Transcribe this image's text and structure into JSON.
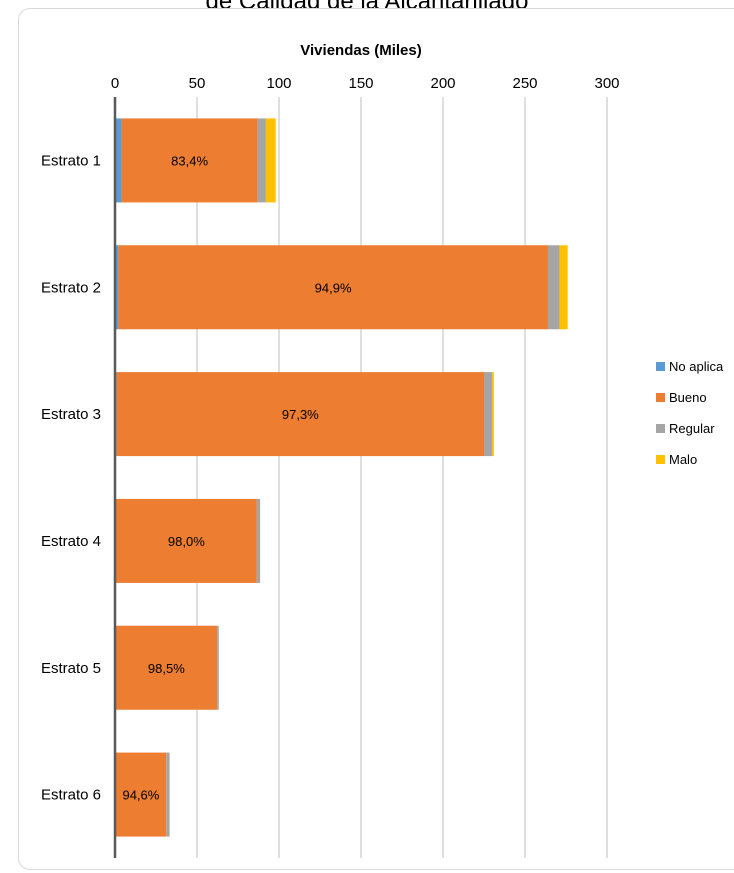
{
  "page": {
    "title_fragment": "de Calidad de la Alcantarillado"
  },
  "chart_data": {
    "type": "bar",
    "orientation": "horizontal",
    "stacked": true,
    "title": "",
    "xlabel": "Viviendas (Miles)",
    "ylabel": "",
    "xlim": [
      0,
      300
    ],
    "xticks": [
      0,
      50,
      100,
      150,
      200,
      250,
      300
    ],
    "x_axis_position": "top",
    "grid": true,
    "legend_position": "right",
    "categories": [
      "Estrato 1",
      "Estrato 2",
      "Estrato 3",
      "Estrato 4",
      "Estrato 5",
      "Estrato 6"
    ],
    "series": [
      {
        "name": "No aplica",
        "color": "#5B9BD5",
        "values": [
          4,
          2,
          1,
          0.5,
          0.3,
          0.3
        ]
      },
      {
        "name": "Bueno",
        "color": "#ED7D31",
        "values": [
          83,
          262,
          224,
          86,
          62,
          31
        ]
      },
      {
        "name": "Regular",
        "color": "#A5A5A5",
        "values": [
          5,
          7,
          5,
          2,
          1,
          2
        ]
      },
      {
        "name": "Malo",
        "color": "#FFC000",
        "values": [
          6,
          5,
          1,
          0,
          0,
          0
        ]
      }
    ],
    "data_labels": [
      "83,4%",
      "94,9%",
      "97,3%",
      "98,0%",
      "98,5%",
      "94,6%"
    ]
  }
}
